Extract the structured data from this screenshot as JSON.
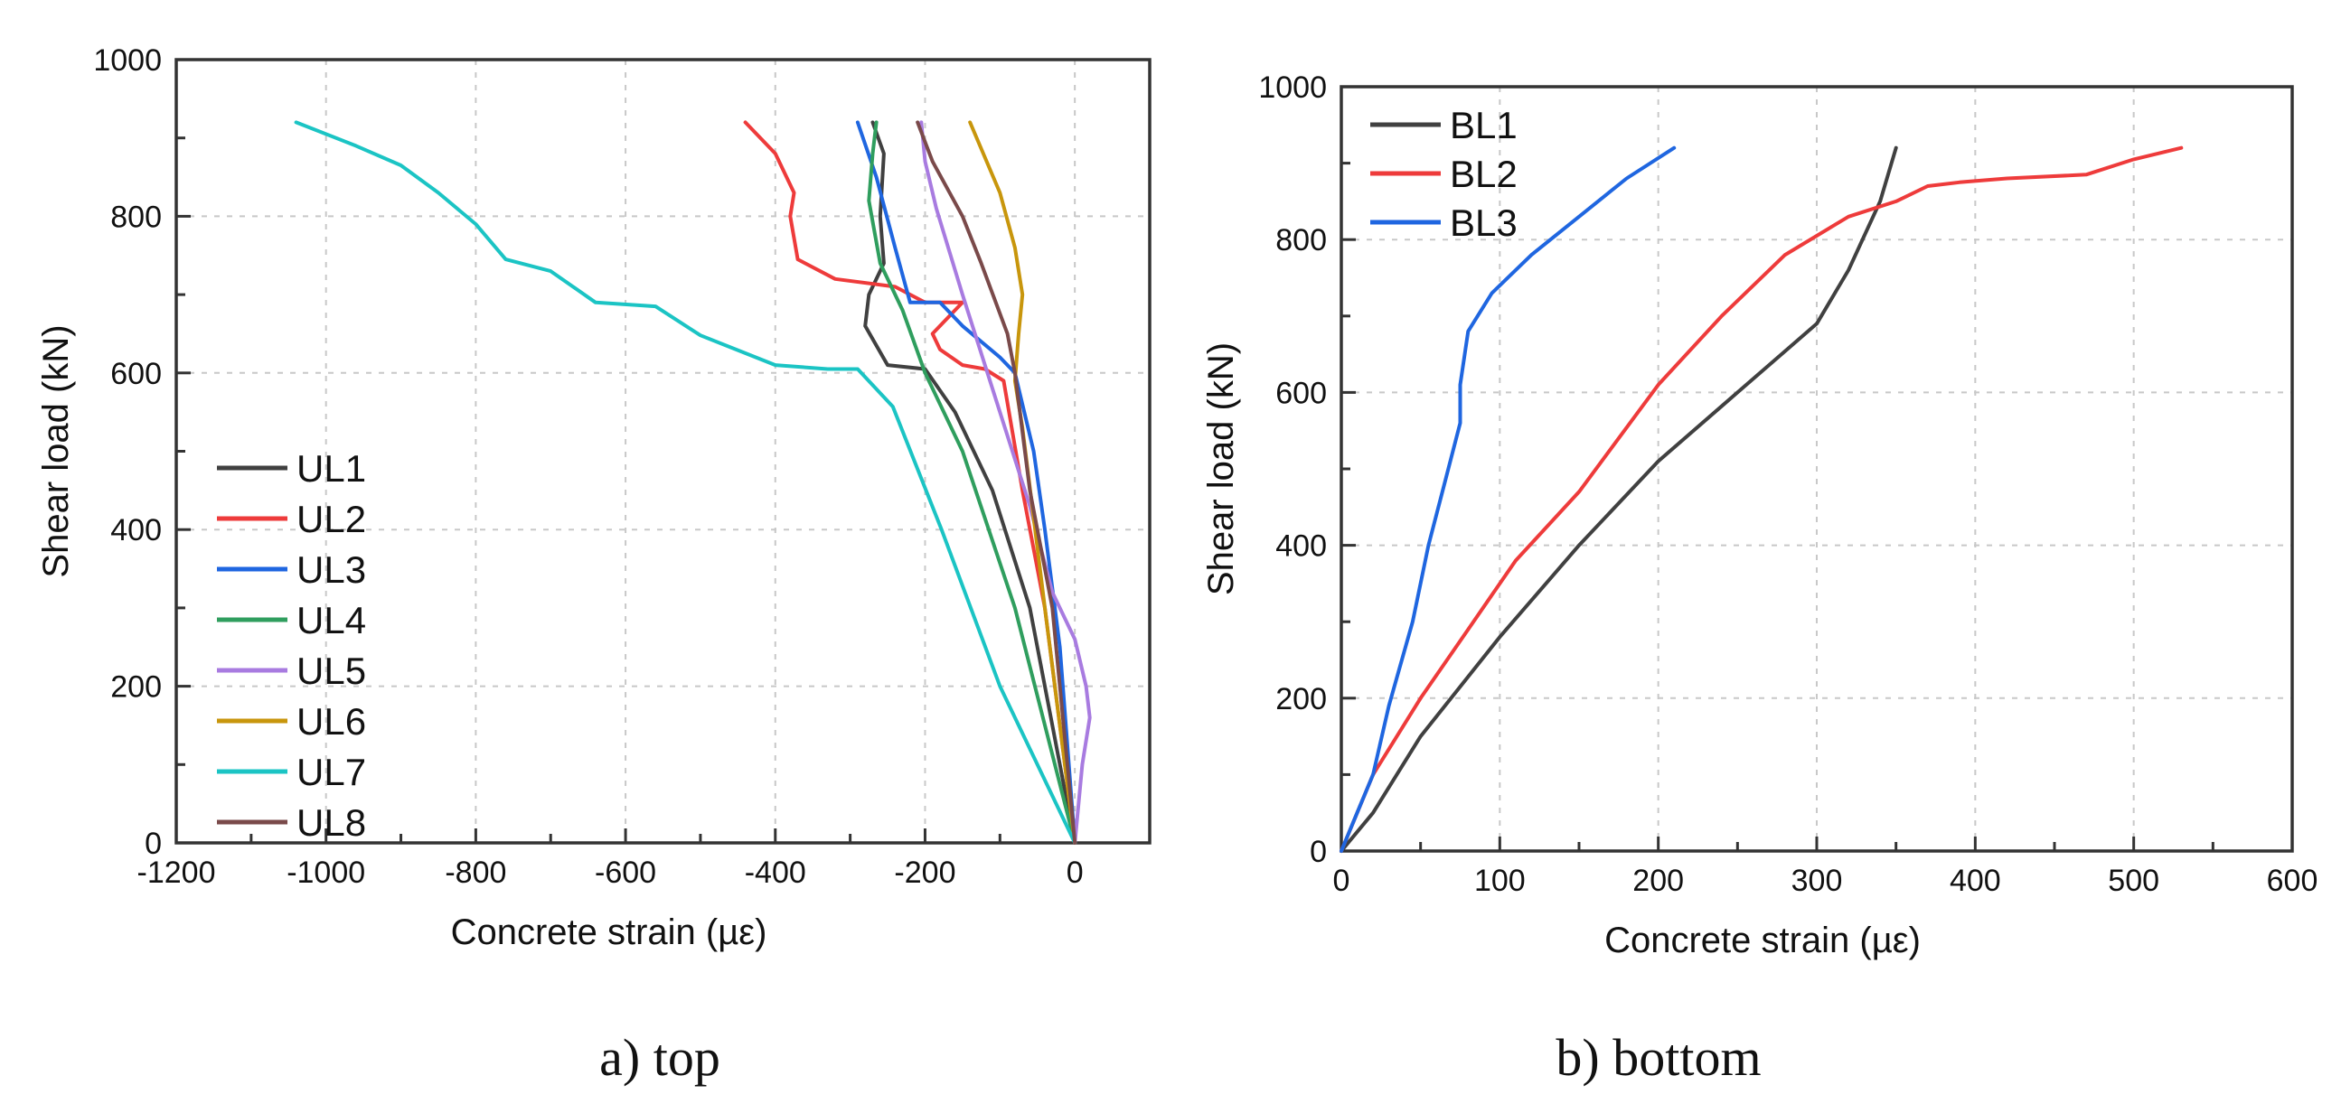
{
  "chart_data": [
    {
      "type": "line",
      "id": "top",
      "caption": "a) top",
      "title": "",
      "xlabel": "Concrete strain (µε)",
      "ylabel": "Shear load (kN)",
      "xlim": [
        -1200,
        100
      ],
      "ylim": [
        0,
        1000
      ],
      "xticks": [
        -1200,
        -1000,
        -800,
        -600,
        -400,
        -200,
        0
      ],
      "yticks": [
        0,
        200,
        400,
        600,
        800,
        1000
      ],
      "grid": true,
      "legend_position": "bottom-left",
      "series": [
        {
          "name": "UL1",
          "color": "#404040",
          "points": [
            [
              0,
              0
            ],
            [
              -60,
              300
            ],
            [
              -110,
              450
            ],
            [
              -160,
              550
            ],
            [
              -200,
              605
            ],
            [
              -250,
              610
            ],
            [
              -280,
              660
            ],
            [
              -275,
              700
            ],
            [
              -255,
              740
            ],
            [
              -260,
              800
            ],
            [
              -255,
              880
            ],
            [
              -270,
              920
            ]
          ]
        },
        {
          "name": "UL2",
          "color": "#ee3b3b",
          "points": [
            [
              0,
              0
            ],
            [
              -40,
              300
            ],
            [
              -70,
              450
            ],
            [
              -95,
              590
            ],
            [
              -120,
              605
            ],
            [
              -150,
              610
            ],
            [
              -180,
              630
            ],
            [
              -190,
              650
            ],
            [
              -150,
              690
            ],
            [
              -200,
              690
            ],
            [
              -240,
              710
            ],
            [
              -320,
              720
            ],
            [
              -370,
              745
            ],
            [
              -380,
              800
            ],
            [
              -375,
              830
            ],
            [
              -400,
              880
            ],
            [
              -440,
              920
            ]
          ]
        },
        {
          "name": "UL3",
          "color": "#1f66e0",
          "points": [
            [
              0,
              0
            ],
            [
              -20,
              250
            ],
            [
              -40,
              400
            ],
            [
              -55,
              500
            ],
            [
              -80,
              600
            ],
            [
              -100,
              620
            ],
            [
              -150,
              660
            ],
            [
              -180,
              690
            ],
            [
              -220,
              690
            ],
            [
              -240,
              760
            ],
            [
              -265,
              850
            ],
            [
              -290,
              920
            ]
          ]
        },
        {
          "name": "UL4",
          "color": "#2f9e5e",
          "points": [
            [
              0,
              0
            ],
            [
              -80,
              300
            ],
            [
              -150,
              500
            ],
            [
              -200,
              600
            ],
            [
              -230,
              680
            ],
            [
              -260,
              740
            ],
            [
              -275,
              820
            ],
            [
              -270,
              880
            ],
            [
              -265,
              920
            ]
          ]
        },
        {
          "name": "UL5",
          "color": "#a87be0",
          "points": [
            [
              0,
              0
            ],
            [
              10,
              100
            ],
            [
              20,
              160
            ],
            [
              15,
              200
            ],
            [
              0,
              260
            ],
            [
              -30,
              320
            ],
            [
              -60,
              430
            ],
            [
              -110,
              580
            ],
            [
              -150,
              700
            ],
            [
              -185,
              810
            ],
            [
              -200,
              870
            ],
            [
              -205,
              920
            ]
          ]
        },
        {
          "name": "UL6",
          "color": "#c8960c",
          "points": [
            [
              0,
              0
            ],
            [
              -40,
              300
            ],
            [
              -70,
              530
            ],
            [
              -80,
              590
            ],
            [
              -75,
              650
            ],
            [
              -70,
              700
            ],
            [
              -80,
              760
            ],
            [
              -100,
              830
            ],
            [
              -140,
              920
            ]
          ]
        },
        {
          "name": "UL7",
          "color": "#1bc4c4",
          "points": [
            [
              0,
              0
            ],
            [
              -100,
              200
            ],
            [
              -178,
              400
            ],
            [
              -243,
              557
            ],
            [
              -290,
              605
            ],
            [
              -330,
              605
            ],
            [
              -400,
              610
            ],
            [
              -500,
              648
            ],
            [
              -560,
              685
            ],
            [
              -640,
              690
            ],
            [
              -700,
              730
            ],
            [
              -760,
              745
            ],
            [
              -800,
              790
            ],
            [
              -850,
              830
            ],
            [
              -900,
              865
            ],
            [
              -960,
              890
            ],
            [
              -1040,
              920
            ]
          ]
        },
        {
          "name": "UL8",
          "color": "#7a4a4a",
          "points": [
            [
              0,
              0
            ],
            [
              -30,
              300
            ],
            [
              -60,
              450
            ],
            [
              -80,
              600
            ],
            [
              -90,
              650
            ],
            [
              -125,
              740
            ],
            [
              -150,
              800
            ],
            [
              -190,
              870
            ],
            [
              -210,
              920
            ]
          ]
        }
      ]
    },
    {
      "type": "line",
      "id": "bottom",
      "caption": "b) bottom",
      "title": "",
      "xlabel": "Concrete strain (µε)",
      "ylabel": "Shear load (kN)",
      "xlim": [
        0,
        600
      ],
      "ylim": [
        0,
        1000
      ],
      "xticks": [
        0,
        100,
        200,
        300,
        400,
        500,
        600
      ],
      "yticks": [
        0,
        200,
        400,
        600,
        800,
        1000
      ],
      "grid": true,
      "legend_position": "top-left",
      "series": [
        {
          "name": "BL1",
          "color": "#404040",
          "points": [
            [
              0,
              0
            ],
            [
              20,
              50
            ],
            [
              50,
              150
            ],
            [
              100,
              280
            ],
            [
              150,
              400
            ],
            [
              200,
              510
            ],
            [
              250,
              600
            ],
            [
              300,
              690
            ],
            [
              320,
              760
            ],
            [
              340,
              850
            ],
            [
              350,
              920
            ]
          ]
        },
        {
          "name": "BL2",
          "color": "#ee3b3b",
          "points": [
            [
              0,
              0
            ],
            [
              20,
              100
            ],
            [
              50,
              200
            ],
            [
              80,
              290
            ],
            [
              110,
              380
            ],
            [
              150,
              470
            ],
            [
              200,
              610
            ],
            [
              240,
              700
            ],
            [
              280,
              780
            ],
            [
              320,
              830
            ],
            [
              350,
              850
            ],
            [
              370,
              870
            ],
            [
              390,
              875
            ],
            [
              420,
              880
            ],
            [
              470,
              885
            ],
            [
              500,
              905
            ],
            [
              530,
              920
            ]
          ]
        },
        {
          "name": "BL3",
          "color": "#1f66e0",
          "points": [
            [
              0,
              0
            ],
            [
              10,
              50
            ],
            [
              20,
              100
            ],
            [
              30,
              190
            ],
            [
              45,
              300
            ],
            [
              55,
              400
            ],
            [
              65,
              480
            ],
            [
              75,
              560
            ],
            [
              75,
              610
            ],
            [
              80,
              680
            ],
            [
              95,
              730
            ],
            [
              120,
              780
            ],
            [
              150,
              830
            ],
            [
              180,
              880
            ],
            [
              210,
              920
            ]
          ]
        }
      ]
    }
  ]
}
